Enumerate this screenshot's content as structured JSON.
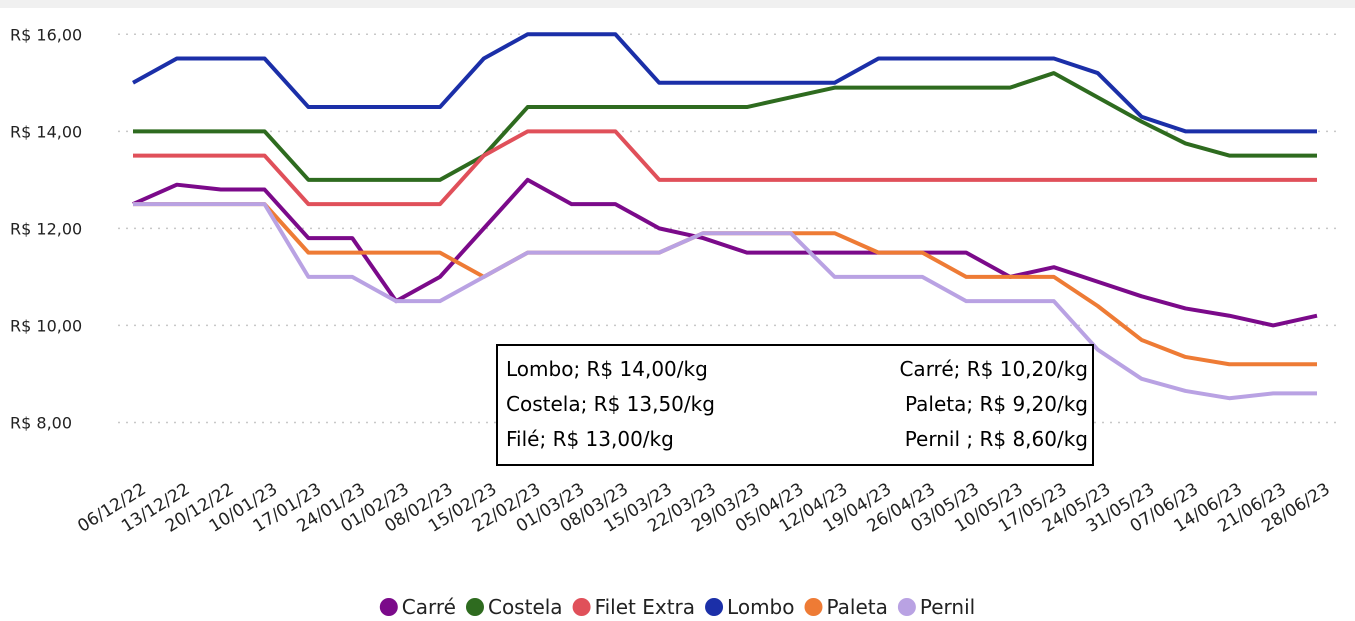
{
  "chart_data": {
    "type": "line",
    "categories": [
      "06/12/22",
      "13/12/22",
      "20/12/22",
      "10/01/23",
      "17/01/23",
      "24/01/23",
      "01/02/23",
      "08/02/23",
      "15/02/23",
      "22/02/23",
      "01/03/23",
      "08/03/23",
      "15/03/23",
      "22/03/23",
      "29/03/23",
      "05/04/23",
      "12/04/23",
      "19/04/23",
      "26/04/23",
      "03/05/23",
      "10/05/23",
      "17/05/23",
      "24/05/23",
      "31/05/23",
      "07/06/23",
      "14/06/23",
      "21/06/23",
      "28/06/23"
    ],
    "series": [
      {
        "name": "Carré",
        "color": "#7b0a8a",
        "values": [
          12.5,
          12.9,
          12.8,
          12.8,
          11.8,
          11.8,
          10.5,
          11.0,
          12.0,
          13.0,
          12.5,
          12.5,
          12.0,
          11.8,
          11.5,
          11.5,
          11.5,
          11.5,
          11.5,
          11.5,
          11.0,
          11.2,
          10.9,
          10.6,
          10.35,
          10.2,
          10.0,
          10.2
        ]
      },
      {
        "name": "Costela",
        "color": "#2e6b1f",
        "values": [
          14,
          14,
          14,
          14,
          13,
          13,
          13,
          13,
          13.5,
          14.5,
          14.5,
          14.5,
          14.5,
          14.5,
          14.5,
          14.7,
          14.9,
          14.9,
          14.9,
          14.9,
          14.9,
          15.2,
          14.7,
          14.2,
          13.75,
          13.5,
          13.5,
          13.5
        ]
      },
      {
        "name": "Filet Extra",
        "color": "#e0505a",
        "values": [
          13.5,
          13.5,
          13.5,
          13.5,
          12.5,
          12.5,
          12.5,
          12.5,
          13.5,
          14,
          14,
          14,
          13,
          13,
          13,
          13,
          13,
          13,
          13,
          13,
          13,
          13,
          13,
          13,
          13,
          13,
          13,
          13
        ]
      },
      {
        "name": "Lombo",
        "color": "#1b2fa8",
        "values": [
          15,
          15.5,
          15.5,
          15.5,
          14.5,
          14.5,
          14.5,
          14.5,
          15.5,
          16,
          16,
          16,
          15,
          15,
          15,
          15,
          15,
          15.5,
          15.5,
          15.5,
          15.5,
          15.5,
          15.2,
          14.3,
          14,
          14,
          14,
          14
        ]
      },
      {
        "name": "Paleta",
        "color": "#ee7b35",
        "values": [
          12.5,
          12.5,
          12.5,
          12.5,
          11.5,
          11.5,
          11.5,
          11.5,
          11.0,
          11.5,
          11.5,
          11.5,
          11.5,
          11.9,
          11.9,
          11.9,
          11.9,
          11.5,
          11.5,
          11.0,
          11.0,
          11.0,
          10.4,
          9.7,
          9.35,
          9.2,
          9.2,
          9.2
        ]
      },
      {
        "name": "Pernil",
        "color": "#b9a2e3",
        "values": [
          12.5,
          12.5,
          12.5,
          12.5,
          11.0,
          11.0,
          10.5,
          10.5,
          11.0,
          11.5,
          11.5,
          11.5,
          11.5,
          11.9,
          11.9,
          11.9,
          11.0,
          11.0,
          11.0,
          10.5,
          10.5,
          10.5,
          9.5,
          8.9,
          8.65,
          8.5,
          8.6,
          8.6
        ]
      }
    ],
    "ylim": [
      7,
      16.5
    ],
    "yticks": [
      {
        "value": 8,
        "label": "R$ 8,00"
      },
      {
        "value": 10,
        "label": "R$ 10,00"
      },
      {
        "value": 12,
        "label": "R$ 12,00"
      },
      {
        "value": 14,
        "label": "R$ 14,00"
      },
      {
        "value": 16,
        "label": "R$ 16,00"
      }
    ],
    "grid": true,
    "legend": "bottom",
    "annotations": {
      "left": [
        "Lombo; R$ 14,00/kg",
        "Costela; R$ 13,50/kg",
        "Filé; R$ 13,00/kg"
      ],
      "right": [
        "Carré; R$ 10,20/kg",
        "Paleta; R$ 9,20/kg",
        "Pernil ; R$ 8,60/kg"
      ]
    }
  }
}
